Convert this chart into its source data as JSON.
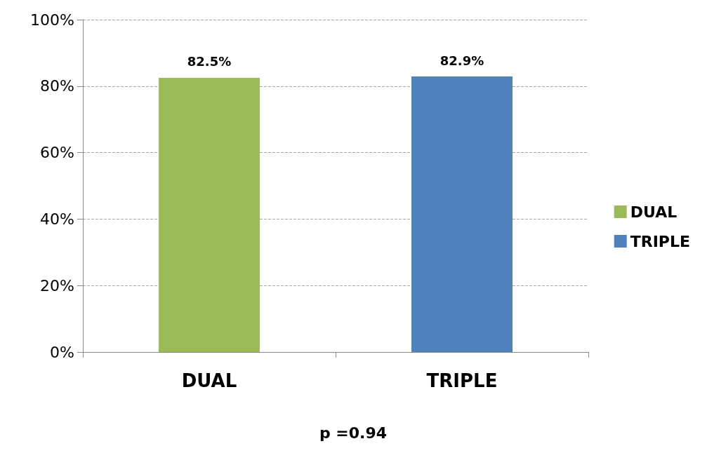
{
  "chart_data": {
    "type": "bar",
    "categories": [
      "DUAL",
      "TRIPLE"
    ],
    "series": [
      {
        "name": "DUAL",
        "color": "#9bbb59",
        "values": [
          82.5,
          null
        ],
        "value_labels": [
          "82.5%",
          null
        ]
      },
      {
        "name": "TRIPLE",
        "color": "#4f81bd",
        "values": [
          null,
          82.9
        ],
        "value_labels": [
          null,
          "82.9%"
        ]
      }
    ],
    "ylim": [
      0,
      100
    ],
    "yticks": [
      {
        "value": 0,
        "label": "0%"
      },
      {
        "value": 20,
        "label": "20%"
      },
      {
        "value": 40,
        "label": "40%"
      },
      {
        "value": 60,
        "label": "60%"
      },
      {
        "value": 80,
        "label": "80%"
      },
      {
        "value": 100,
        "label": "100%"
      }
    ],
    "grid": "y",
    "legend": "right",
    "annotations": [
      "p =0.94"
    ]
  }
}
